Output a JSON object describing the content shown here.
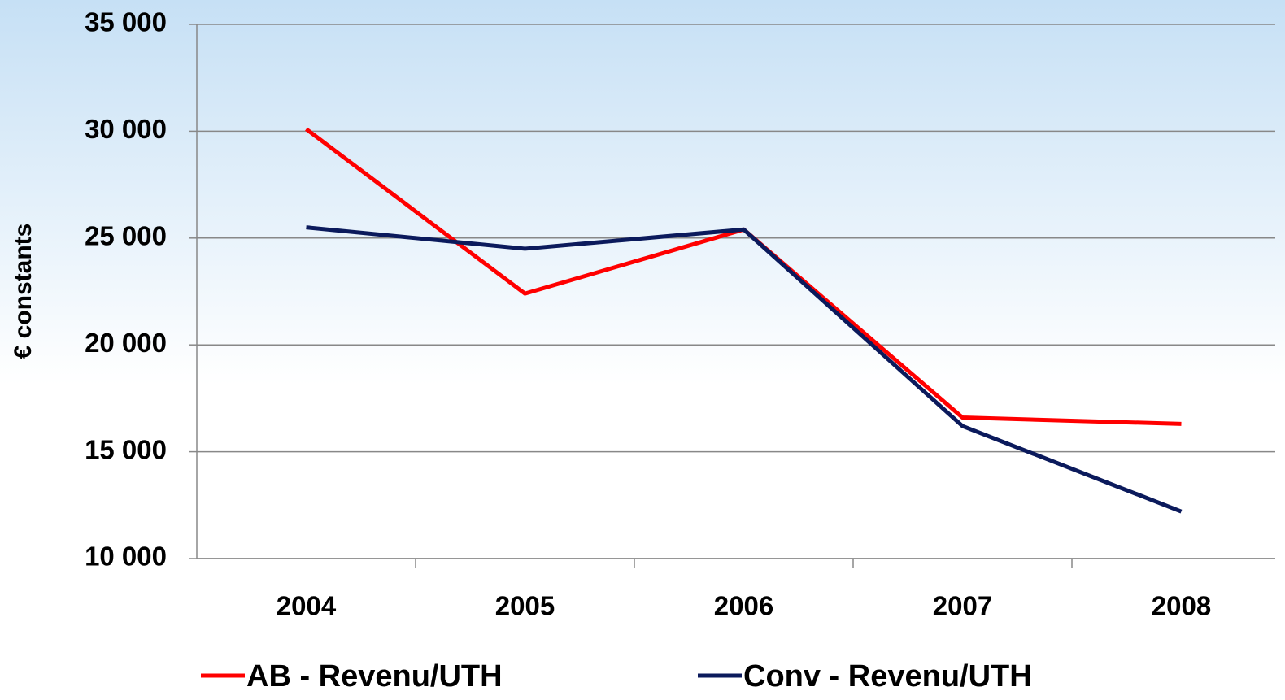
{
  "chart_data": {
    "type": "line",
    "y_label": "€ constants",
    "categories": [
      "2004",
      "2005",
      "2006",
      "2007",
      "2008"
    ],
    "series": [
      {
        "name": "AB - Revenu/UTH",
        "color": "#ff0000",
        "values": [
          30100,
          22400,
          25400,
          16600,
          16300
        ]
      },
      {
        "name": "Conv - Revenu/UTH",
        "color": "#0b1a5c",
        "values": [
          25500,
          24500,
          25400,
          16200,
          12200
        ]
      }
    ],
    "ylim": [
      10000,
      35000
    ],
    "yticks": [
      {
        "value": 10000,
        "label": "10 000"
      },
      {
        "value": 15000,
        "label": "15 000"
      },
      {
        "value": 20000,
        "label": "20 000"
      },
      {
        "value": 25000,
        "label": "25 000"
      },
      {
        "value": 30000,
        "label": "30 000"
      },
      {
        "value": 35000,
        "label": "35 000"
      }
    ],
    "grid": true,
    "legend": "bottom"
  }
}
